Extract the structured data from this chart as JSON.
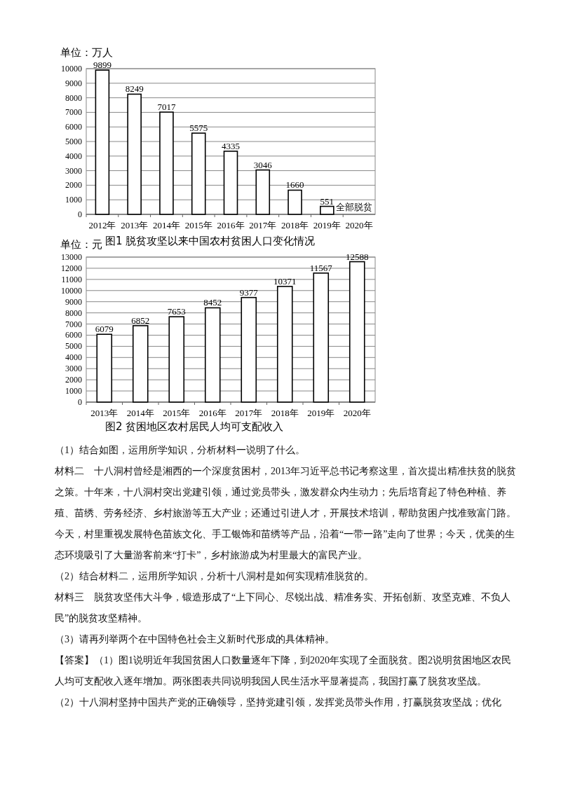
{
  "chart_data": [
    {
      "type": "bar",
      "title": "图1 脱贫攻坚以来中国农村贫困人口变化情况",
      "ylabel": "单位：万人",
      "categories": [
        "2012年",
        "2013年",
        "2014年",
        "2015年",
        "2016年",
        "2017年",
        "2018年",
        "2019年",
        "2020年"
      ],
      "values": [
        9899,
        8249,
        7017,
        5575,
        4335,
        3046,
        1660,
        551,
        null
      ],
      "color": "#ffffff",
      "ylim": [
        0,
        10000
      ],
      "yticks": [
        0,
        1000,
        2000,
        3000,
        4000,
        5000,
        6000,
        7000,
        8000,
        9000,
        10000
      ],
      "grid": "y",
      "data_labels": true,
      "annotations": [
        "全部脱贫"
      ]
    },
    {
      "type": "bar",
      "title": "图2 贫困地区农村居民人均可支配收入",
      "ylabel": "单位：元",
      "categories": [
        "2013年",
        "2014年",
        "2015年",
        "2016年",
        "2017年",
        "2018年",
        "2019年",
        "2020年"
      ],
      "values": [
        6079,
        6852,
        7653,
        8452,
        9377,
        10371,
        11567,
        12588
      ],
      "color": "#ffffff",
      "ylim": [
        0,
        13000
      ],
      "yticks": [
        0,
        1000,
        2000,
        3000,
        4000,
        5000,
        6000,
        7000,
        8000,
        9000,
        10000,
        11000,
        12000,
        13000
      ],
      "grid": "y",
      "data_labels": true,
      "annotations": [
        "（1）结合如图，运用所学知识，分析材料一说明了什么。",
        "材料二　十八洞村曾经是湘西的一个深度贫困村，2013年习近平总书记考察这里，首次提出精准扶贫的脱贫之策。十年来，十八洞村突出党建引领，通过党员带头，激发群众内生动力；先后培育起了特色种植、养殖、苗绣、劳务经济、乡村旅游等五大产业；还通过引进人才，开展技术培训，帮助贫困户找准致富门路。今天，村里重视发展特色苗族文化、手工银饰和苗绣等产品，沿着“一带一路”走向了世界；今天，优美的生态环境吸引了大量游客前来“打卡”，乡村旅游成为村里最大的富民产业。",
        "（2）结合材料二，运用所学知识，分析十八洞村是如何实现精准脱贫的。",
        "材料三　脱贫攻坚伟大斗争，锻造形成了“上下同心、尽锐出战、精准务实、开拓创新、攻坚克难、不负人民”的脱贫攻坚精神。",
        "（3）请再列举两个在中国特色社会主义新时代形成的具体精神。",
        "【答案】（1）图1说明近年我国贫困人口数量逐年下降，到2020年实现了全面脱贫。图2说明贫困地区农民人均可支配收入逐年增加。两张图表共同说明我国人民生活水平显著提高，我国打赢了脱贫攻坚战。",
        "（2）十八洞村坚持中国共产党的正确领导，坚持党建引领，发挥党员带头作用，打赢脱贫攻坚战；优化"
      ]
    }
  ]
}
